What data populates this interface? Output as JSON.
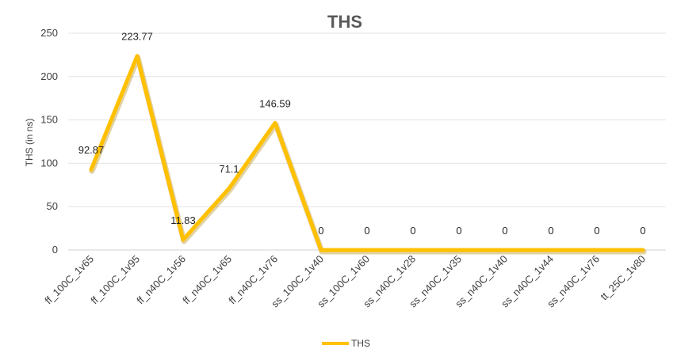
{
  "chart_data": {
    "type": "line",
    "title": "THS",
    "ylabel": "THS (in ns)",
    "xlabel": "",
    "ylim": [
      0,
      250
    ],
    "yticks": [
      0,
      50,
      100,
      150,
      200,
      250
    ],
    "grid": "horizontal",
    "legend_position": "bottom",
    "categories": [
      "ff_100C_1v65",
      "ff_100C_1v95",
      "ff_n40C_1v56",
      "ff_n40C_1v65",
      "ff_n40C_1v76",
      "ss_100C_1v40",
      "ss_100C_1v60",
      "ss_n40C_1v28",
      "ss_n40C_1v35",
      "ss_n40C_1v40",
      "ss_n40C_1v44",
      "ss_n40C_1v76",
      "tt_25C_1v80"
    ],
    "series": [
      {
        "name": "THS",
        "color": "#FFC000",
        "values": [
          92.87,
          223.77,
          11.83,
          71.1,
          146.59,
          0,
          0,
          0,
          0,
          0,
          0,
          0,
          0
        ],
        "data_labels": [
          "92.87",
          "223.77",
          "11.83",
          "71.1",
          "146.59",
          "0",
          "0",
          "0",
          "0",
          "0",
          "0",
          "0",
          "0"
        ]
      }
    ]
  }
}
